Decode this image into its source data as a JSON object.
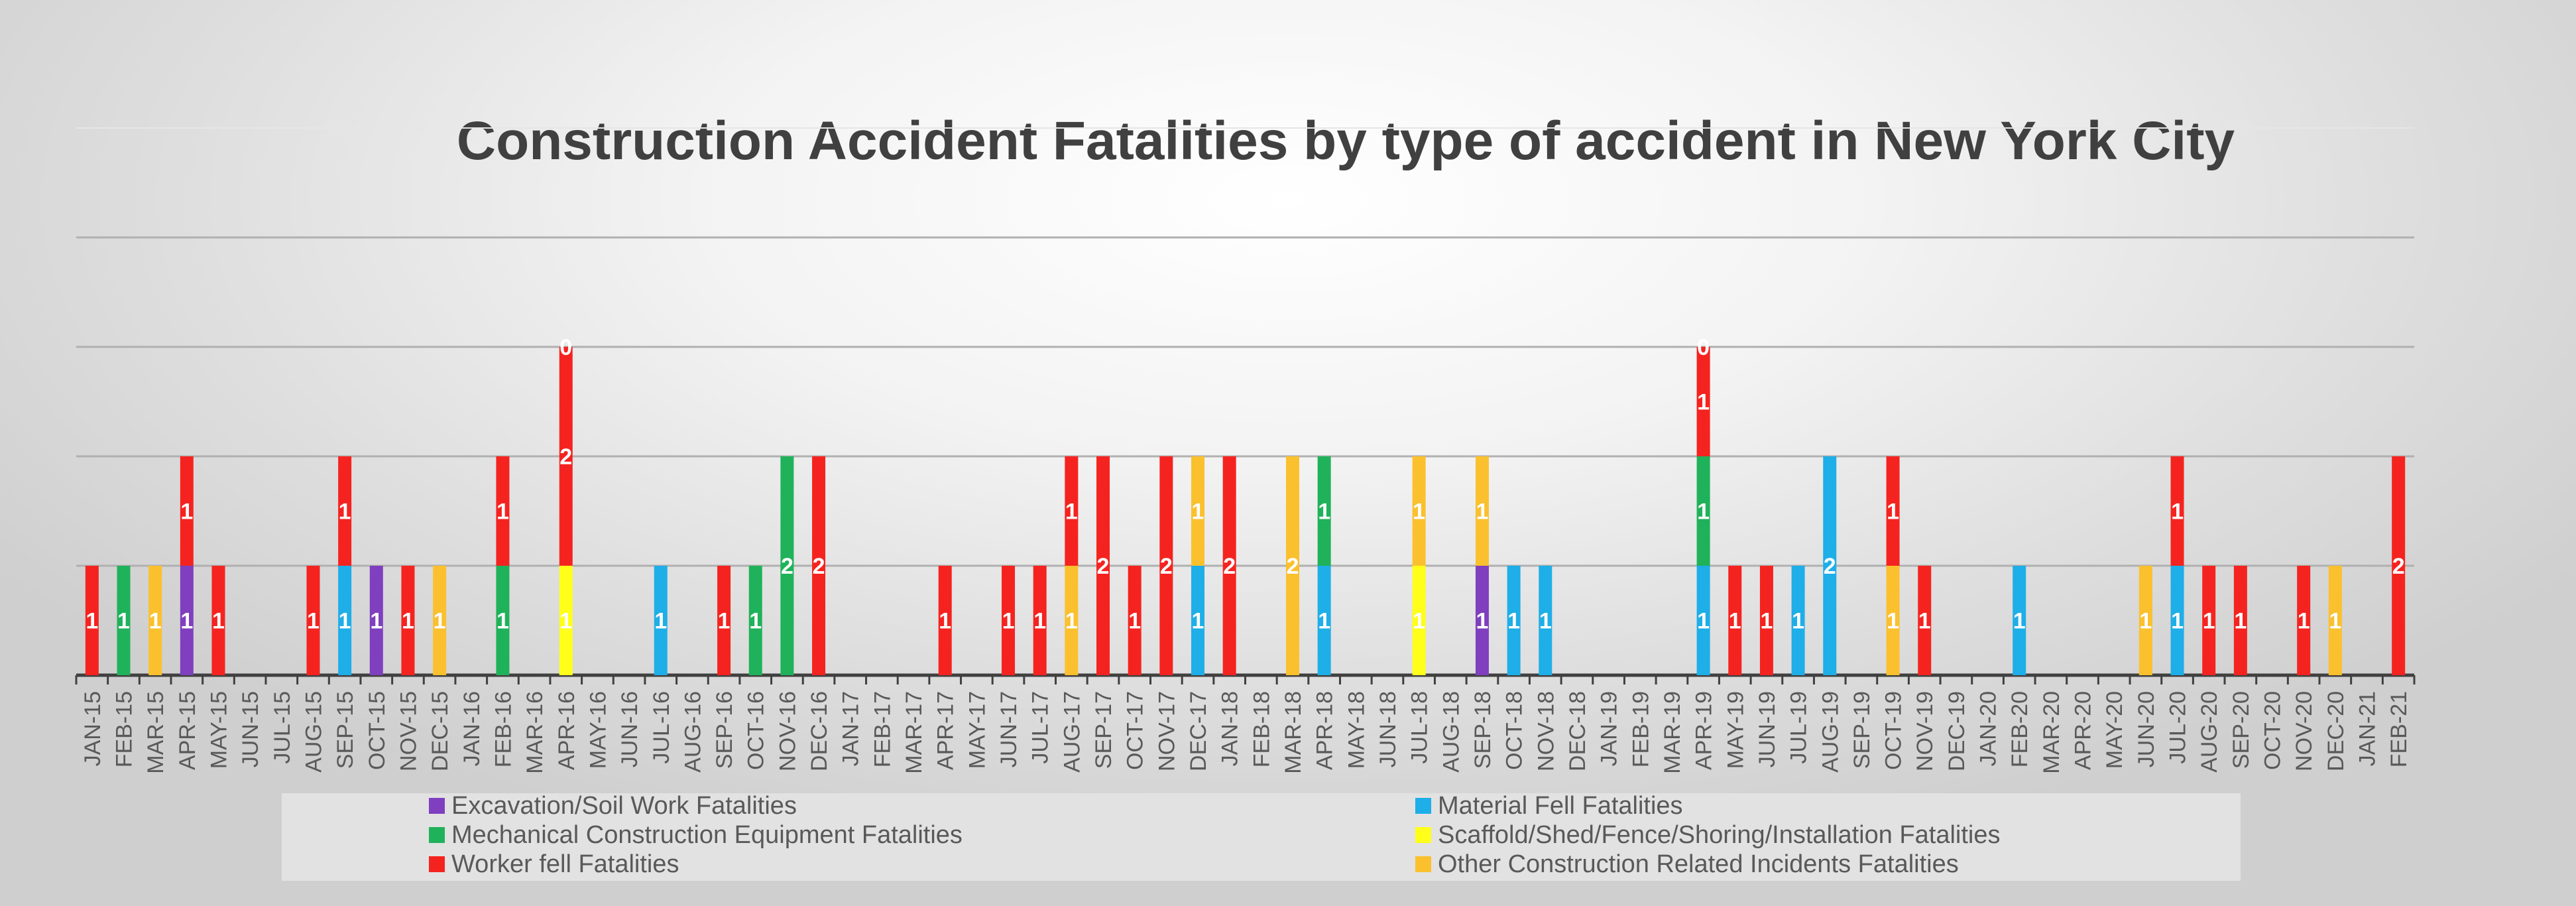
{
  "chart_data": {
    "type": "bar",
    "stacked": true,
    "title": "Construction Accident Fatalities by type of accident in New York City",
    "xlabel": "",
    "ylabel": "",
    "ylim": [
      0,
      5
    ],
    "grid": true,
    "legend_position": "bottom",
    "categories": [
      "JAN-15",
      "FEB-15",
      "MAR-15",
      "APR-15",
      "MAY-15",
      "JUN-15",
      "JUL-15",
      "AUG-15",
      "SEP-15",
      "OCT-15",
      "NOV-15",
      "DEC-15",
      "JAN-16",
      "FEB-16",
      "MAR-16",
      "APR-16",
      "MAY-16",
      "JUN-16",
      "JUL-16",
      "AUG-16",
      "SEP-16",
      "OCT-16",
      "NOV-16",
      "DEC-16",
      "JAN-17",
      "FEB-17",
      "MAR-17",
      "APR-17",
      "MAY-17",
      "JUN-17",
      "JUL-17",
      "AUG-17",
      "SEP-17",
      "OCT-17",
      "NOV-17",
      "DEC-17",
      "JAN-18",
      "FEB-18",
      "MAR-18",
      "APR-18",
      "MAY-18",
      "JUN-18",
      "JUL-18",
      "AUG-18",
      "SEP-18",
      "OCT-18",
      "NOV-18",
      "DEC-18",
      "JAN-19",
      "FEB-19",
      "MAR-19",
      "APR-19",
      "MAY-19",
      "JUN-19",
      "JUL-19",
      "AUG-19",
      "SEP-19",
      "OCT-19",
      "NOV-19",
      "DEC-19",
      "JAN-20",
      "FEB-20",
      "MAR-20",
      "APR-20",
      "MAY-20",
      "JUN-20",
      "JUL-20",
      "AUG-20",
      "SEP-20",
      "OCT-20",
      "NOV-20",
      "DEC-20",
      "JAN-21",
      "FEB-21"
    ],
    "series": [
      {
        "name": "Excavation/Soil Work Fatalities",
        "color": "#7f3fbf",
        "values": [
          0,
          0,
          0,
          1,
          0,
          0,
          0,
          0,
          0,
          1,
          0,
          0,
          0,
          0,
          0,
          0,
          0,
          0,
          0,
          0,
          0,
          0,
          0,
          0,
          0,
          0,
          0,
          0,
          0,
          0,
          0,
          0,
          0,
          0,
          0,
          0,
          0,
          0,
          0,
          0,
          0,
          0,
          0,
          0,
          1,
          0,
          0,
          0,
          0,
          0,
          0,
          0,
          0,
          0,
          0,
          0,
          0,
          0,
          0,
          0,
          0,
          0,
          0,
          0,
          0,
          0,
          0,
          0,
          0,
          0,
          0,
          0,
          0,
          0
        ]
      },
      {
        "name": "Material Fell Fatalities",
        "color": "#1eaee8",
        "values": [
          0,
          0,
          0,
          0,
          0,
          0,
          0,
          0,
          1,
          0,
          0,
          0,
          0,
          0,
          0,
          0,
          0,
          0,
          1,
          0,
          0,
          0,
          0,
          0,
          0,
          0,
          0,
          0,
          0,
          0,
          0,
          0,
          0,
          0,
          0,
          1,
          0,
          0,
          0,
          1,
          0,
          0,
          0,
          0,
          0,
          1,
          1,
          0,
          0,
          0,
          0,
          1,
          0,
          0,
          1,
          2,
          0,
          0,
          0,
          0,
          0,
          1,
          0,
          0,
          0,
          0,
          1,
          0,
          0,
          0,
          0,
          0,
          0,
          0
        ]
      },
      {
        "name": "Mechanical Construction Equipment Fatalities",
        "color": "#1fb25a",
        "values": [
          0,
          1,
          0,
          0,
          0,
          0,
          0,
          0,
          0,
          0,
          0,
          0,
          0,
          1,
          0,
          0,
          0,
          0,
          0,
          0,
          0,
          1,
          2,
          0,
          0,
          0,
          0,
          0,
          0,
          0,
          0,
          0,
          0,
          0,
          0,
          0,
          0,
          0,
          0,
          1,
          0,
          0,
          0,
          0,
          0,
          0,
          0,
          0,
          0,
          0,
          0,
          1,
          0,
          0,
          0,
          0,
          0,
          0,
          0,
          0,
          0,
          0,
          0,
          0,
          0,
          0,
          0,
          0,
          0,
          0,
          0,
          0,
          0,
          0
        ]
      },
      {
        "name": "Scaffold/Shed/Fence/Shoring/Installation Fatalities",
        "color": "#ffff1a",
        "values": [
          0,
          0,
          0,
          0,
          0,
          0,
          0,
          0,
          0,
          0,
          0,
          0,
          0,
          0,
          0,
          1,
          0,
          0,
          0,
          0,
          0,
          0,
          0,
          0,
          0,
          0,
          0,
          0,
          0,
          0,
          0,
          0,
          0,
          0,
          0,
          0,
          0,
          0,
          0,
          0,
          0,
          0,
          1,
          0,
          0,
          0,
          0,
          0,
          0,
          0,
          0,
          0,
          0,
          0,
          0,
          0,
          0,
          0,
          0,
          0,
          0,
          0,
          0,
          0,
          0,
          0,
          0,
          0,
          0,
          0,
          0,
          0,
          0,
          0
        ]
      },
      {
        "name": "Other Construction Related Incidents Fatalities",
        "color": "#fbc02d",
        "values": [
          0,
          0,
          1,
          0,
          0,
          0,
          0,
          0,
          0,
          0,
          0,
          1,
          0,
          0,
          0,
          0,
          0,
          0,
          0,
          0,
          0,
          0,
          0,
          0,
          0,
          0,
          0,
          0,
          0,
          0,
          0,
          1,
          0,
          0,
          0,
          1,
          0,
          0,
          2,
          0,
          0,
          0,
          1,
          0,
          1,
          0,
          0,
          0,
          0,
          0,
          0,
          0,
          0,
          0,
          0,
          0,
          0,
          1,
          0,
          0,
          0,
          0,
          0,
          0,
          0,
          1,
          0,
          0,
          0,
          0,
          0,
          1,
          0,
          0
        ]
      },
      {
        "name": "Worker fell Fatalities",
        "color": "#f5231f",
        "values": [
          1,
          0,
          0,
          1,
          1,
          0,
          0,
          1,
          1,
          0,
          1,
          0,
          0,
          1,
          0,
          2,
          0,
          0,
          0,
          0,
          1,
          0,
          0,
          2,
          0,
          0,
          0,
          1,
          0,
          1,
          1,
          1,
          2,
          1,
          2,
          0,
          2,
          0,
          0,
          0,
          0,
          0,
          0,
          0,
          0,
          0,
          0,
          0,
          0,
          0,
          0,
          1,
          1,
          1,
          0,
          0,
          0,
          1,
          1,
          0,
          0,
          0,
          0,
          0,
          0,
          0,
          1,
          1,
          1,
          0,
          1,
          0,
          0,
          2
        ]
      }
    ],
    "stack_top_labels": {
      "15": "0",
      "51": "0"
    }
  }
}
